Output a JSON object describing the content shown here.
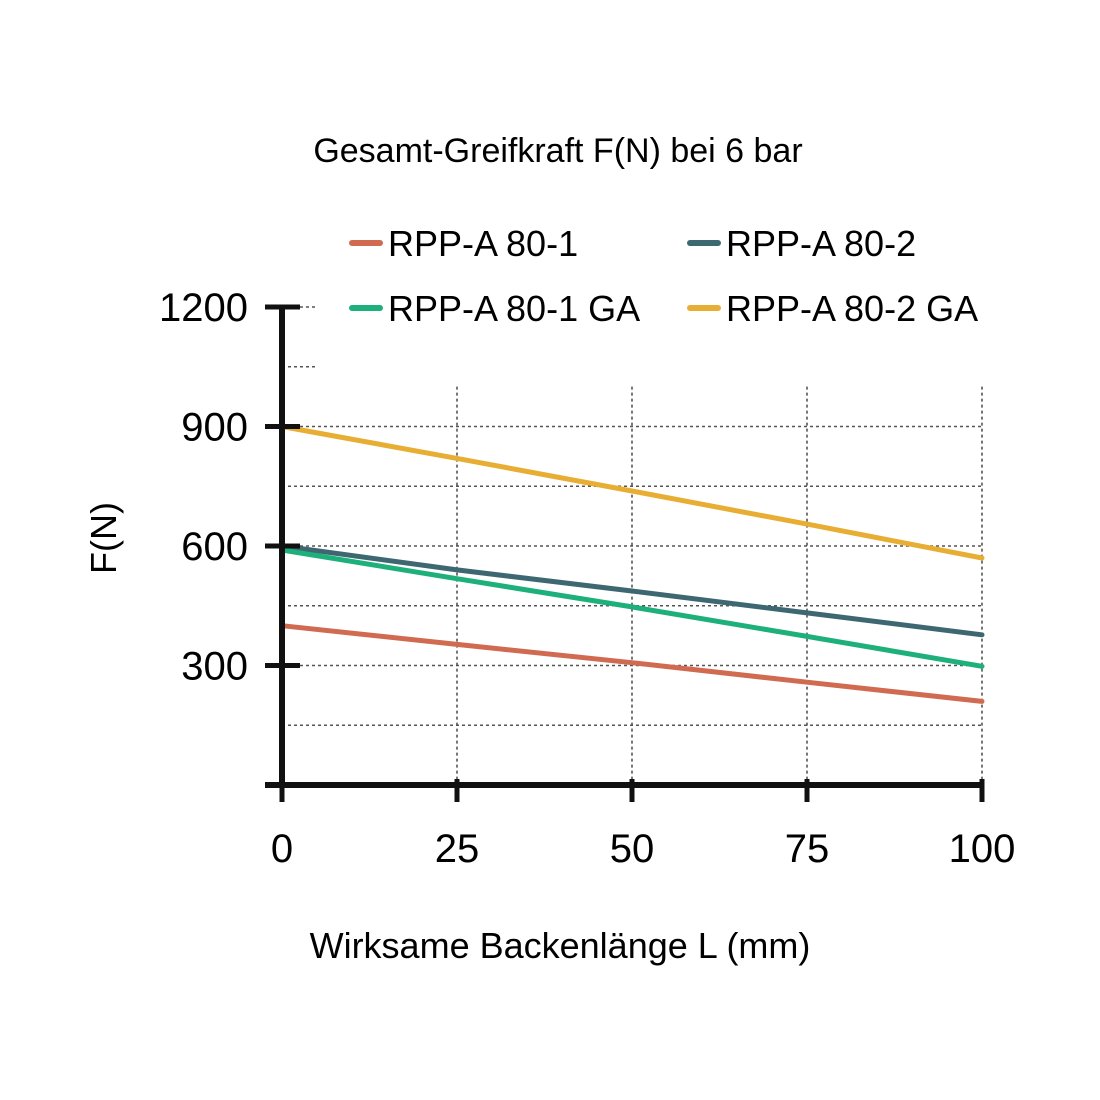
{
  "chart_data": {
    "type": "line",
    "title": "Gesamt-Greifkraft F(N) bei 6 bar",
    "xlabel": "Wirksame Backenlänge L (mm)",
    "ylabel": "F(N)",
    "xlim": [
      0,
      100
    ],
    "ylim": [
      0,
      1200
    ],
    "x_ticks": [
      0,
      25,
      50,
      75,
      100
    ],
    "x_tick_labels": [
      "0",
      "25",
      "50",
      "75",
      "100"
    ],
    "y_ticks": [
      300,
      600,
      900,
      1200
    ],
    "y_tick_labels": [
      "300",
      "600",
      "900",
      "1200"
    ],
    "grid": true,
    "legend_placement": "top",
    "series": [
      {
        "name": "RPP-A 80-1",
        "color": "#d06a50",
        "x": [
          0,
          25,
          50,
          75,
          100
        ],
        "y": [
          400,
          353,
          307,
          258,
          210
        ]
      },
      {
        "name": "RPP-A 80-2",
        "color": "#3d6871",
        "x": [
          0,
          25,
          50,
          75,
          100
        ],
        "y": [
          600,
          540,
          487,
          432,
          377
        ]
      },
      {
        "name": "RPP-A 80-1 GA",
        "color": "#1db07a",
        "x": [
          0,
          25,
          50,
          75,
          100
        ],
        "y": [
          590,
          518,
          447,
          373,
          298
        ]
      },
      {
        "name": "RPP-A 80-2 GA",
        "color": "#e8ae34",
        "x": [
          0,
          25,
          50,
          75,
          100
        ],
        "y": [
          900,
          820,
          738,
          655,
          570
        ]
      }
    ]
  }
}
